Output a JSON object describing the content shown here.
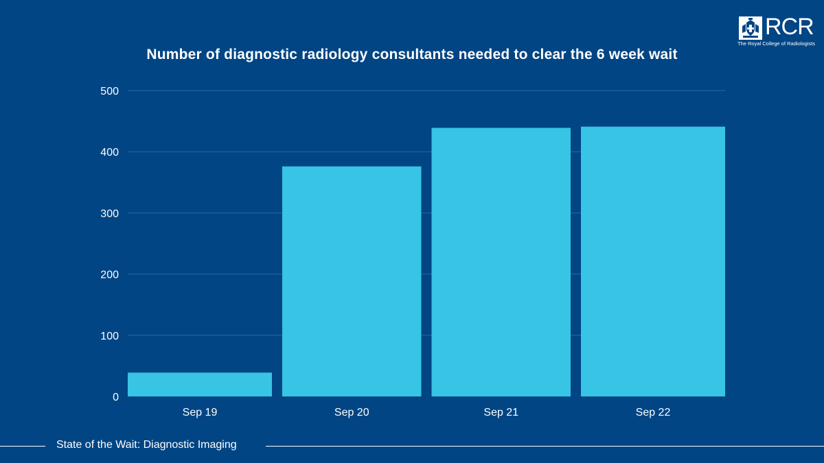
{
  "chart_data": {
    "type": "bar",
    "title": "Number of diagnostic radiology consultants needed to clear the 6 week wait",
    "categories": [
      "Sep 19",
      "Sep 20",
      "Sep 21",
      "Sep 22"
    ],
    "values": [
      39,
      376,
      439,
      441
    ],
    "ylim": [
      0,
      500
    ],
    "yticks": [
      0,
      100,
      200,
      300,
      400,
      500
    ],
    "grid": true,
    "bar_color": "#38c4e4",
    "gridline_color": "#2a6aa3"
  },
  "logo": {
    "text": "RCR",
    "subtitle": "The Royal College of Radiologists"
  },
  "footer": {
    "text": "State of the Wait: Diagnostic Imaging"
  },
  "colors": {
    "background": "#014584",
    "text": "#ffffff"
  }
}
